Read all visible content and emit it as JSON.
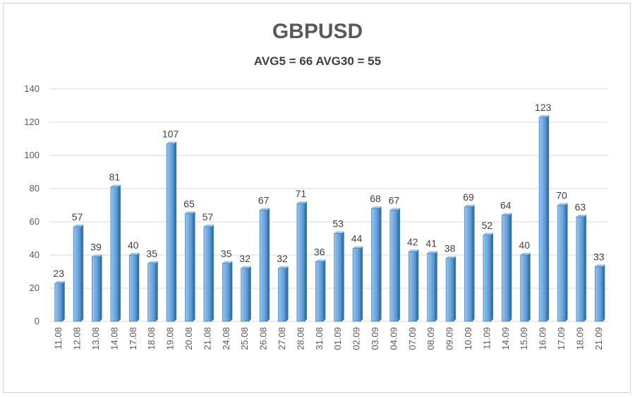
{
  "chart_data": {
    "type": "bar",
    "title": "GBPUSD",
    "subtitle": "AVG5 = 66 AVG30 = 55",
    "xlabel": "",
    "ylabel": "",
    "ylim": [
      0,
      140
    ],
    "yticks": [
      0,
      20,
      40,
      60,
      80,
      100,
      120,
      140
    ],
    "grid": true,
    "categories": [
      "11.08",
      "12.08",
      "13.08",
      "14.08",
      "17.08",
      "18.08",
      "19.08",
      "20.08",
      "21.08",
      "24.08",
      "25.08",
      "26.08",
      "27.08",
      "28.08",
      "31.08",
      "01.09",
      "02.09",
      "03.09",
      "04.09",
      "07.09",
      "08.09",
      "09.09",
      "10.09",
      "11.09",
      "14.09",
      "15.09",
      "16.09",
      "17.09",
      "18.09",
      "21.09"
    ],
    "values": [
      23,
      57,
      39,
      81,
      40,
      35,
      107,
      65,
      57,
      35,
      32,
      67,
      32,
      71,
      36,
      53,
      44,
      68,
      67,
      42,
      41,
      38,
      69,
      52,
      64,
      40,
      123,
      70,
      63,
      33
    ],
    "colors": {
      "bar_light": "#9dc3e6",
      "bar_mid": "#5b9bd5",
      "bar_dark": "#2e75b6",
      "grid": "#d9d9d9"
    }
  }
}
